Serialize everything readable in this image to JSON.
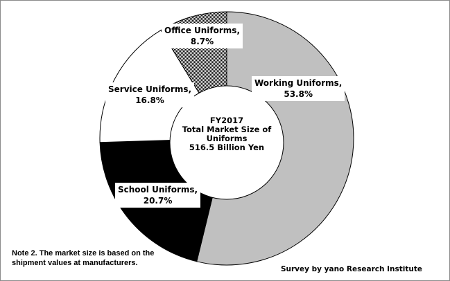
{
  "chart_data": {
    "type": "pie",
    "subtype": "donut",
    "title": "FY2017 Total Market Size of Uniforms 516.5 Billion Yen",
    "center_label": [
      "FY2017",
      "Total Market Size of",
      "Uniforms",
      "516.5 Billion Yen"
    ],
    "total": 516.5,
    "unit": "Billion Yen",
    "categories": [
      "Working Uniforms",
      "School Uniforms",
      "Service Uniforms",
      "Office Uniforms"
    ],
    "values": [
      53.8,
      20.7,
      16.8,
      8.7
    ],
    "value_unit": "%",
    "colors": [
      "#c0c0c0",
      "#000000",
      "#ffffff",
      "checkered"
    ],
    "start_angle_deg": 0,
    "direction": "clockwise",
    "note": "Note 2. The market size is based on the shipment values at manufacturers.",
    "source": "Survey by yano Research Institute"
  },
  "labels": {
    "working": {
      "name": "Working Uniforms,",
      "pct": "53.8%"
    },
    "school": {
      "name": "School Uniforms,",
      "pct": "20.7%"
    },
    "service": {
      "name": "Service Uniforms,",
      "pct": "16.8%"
    },
    "office": {
      "name": "Office Uniforms,",
      "pct": "8.7%"
    }
  },
  "center": {
    "line1": "FY2017",
    "line2": "Total Market Size of",
    "line3": "Uniforms",
    "line4": "516.5 Billion Yen"
  },
  "note": {
    "line1": "Note 2. The market size is based on the",
    "line2": "shipment values at manufacturers."
  },
  "source": "Survey by yano Research Institute"
}
